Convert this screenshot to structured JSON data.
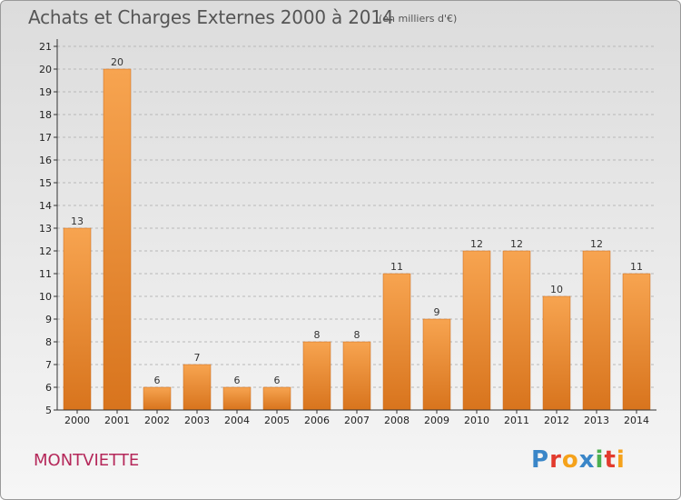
{
  "title": "Achats et Charges Externes 2000 à 2014",
  "subtitle": "(en milliers d'€)",
  "commune": "MONTVIETTE",
  "logo": {
    "text": "Proxiti",
    "letters": [
      "P",
      "r",
      "o",
      "x",
      "i",
      "t",
      "i"
    ],
    "colors": [
      "#3a86c8",
      "#e23b2e",
      "#f5a21b",
      "#3a86c8",
      "#4caf50",
      "#e23b2e",
      "#f5a21b"
    ]
  },
  "colors": {
    "bar_top": "#f7a450",
    "bar_bottom": "#d8741d",
    "axis": "#333333",
    "grid": "#b8b8b8",
    "commune": "#b5285a"
  },
  "chart_data": {
    "type": "bar",
    "title": "Achats et Charges Externes 2000 à 2014",
    "subtitle": "(en milliers d'€)",
    "xlabel": "",
    "ylabel": "",
    "categories": [
      "2000",
      "2001",
      "2002",
      "2003",
      "2004",
      "2005",
      "2006",
      "2007",
      "2008",
      "2009",
      "2010",
      "2011",
      "2012",
      "2013",
      "2014"
    ],
    "values": [
      13,
      20,
      6,
      7,
      6,
      6,
      8,
      8,
      11,
      9,
      12,
      12,
      10,
      12,
      11
    ],
    "ylim": [
      5,
      21
    ],
    "yticks": [
      5,
      6,
      7,
      8,
      9,
      10,
      11,
      12,
      13,
      14,
      15,
      16,
      17,
      18,
      19,
      20,
      21
    ],
    "grid": "horizontal dashed",
    "legend": "none"
  }
}
